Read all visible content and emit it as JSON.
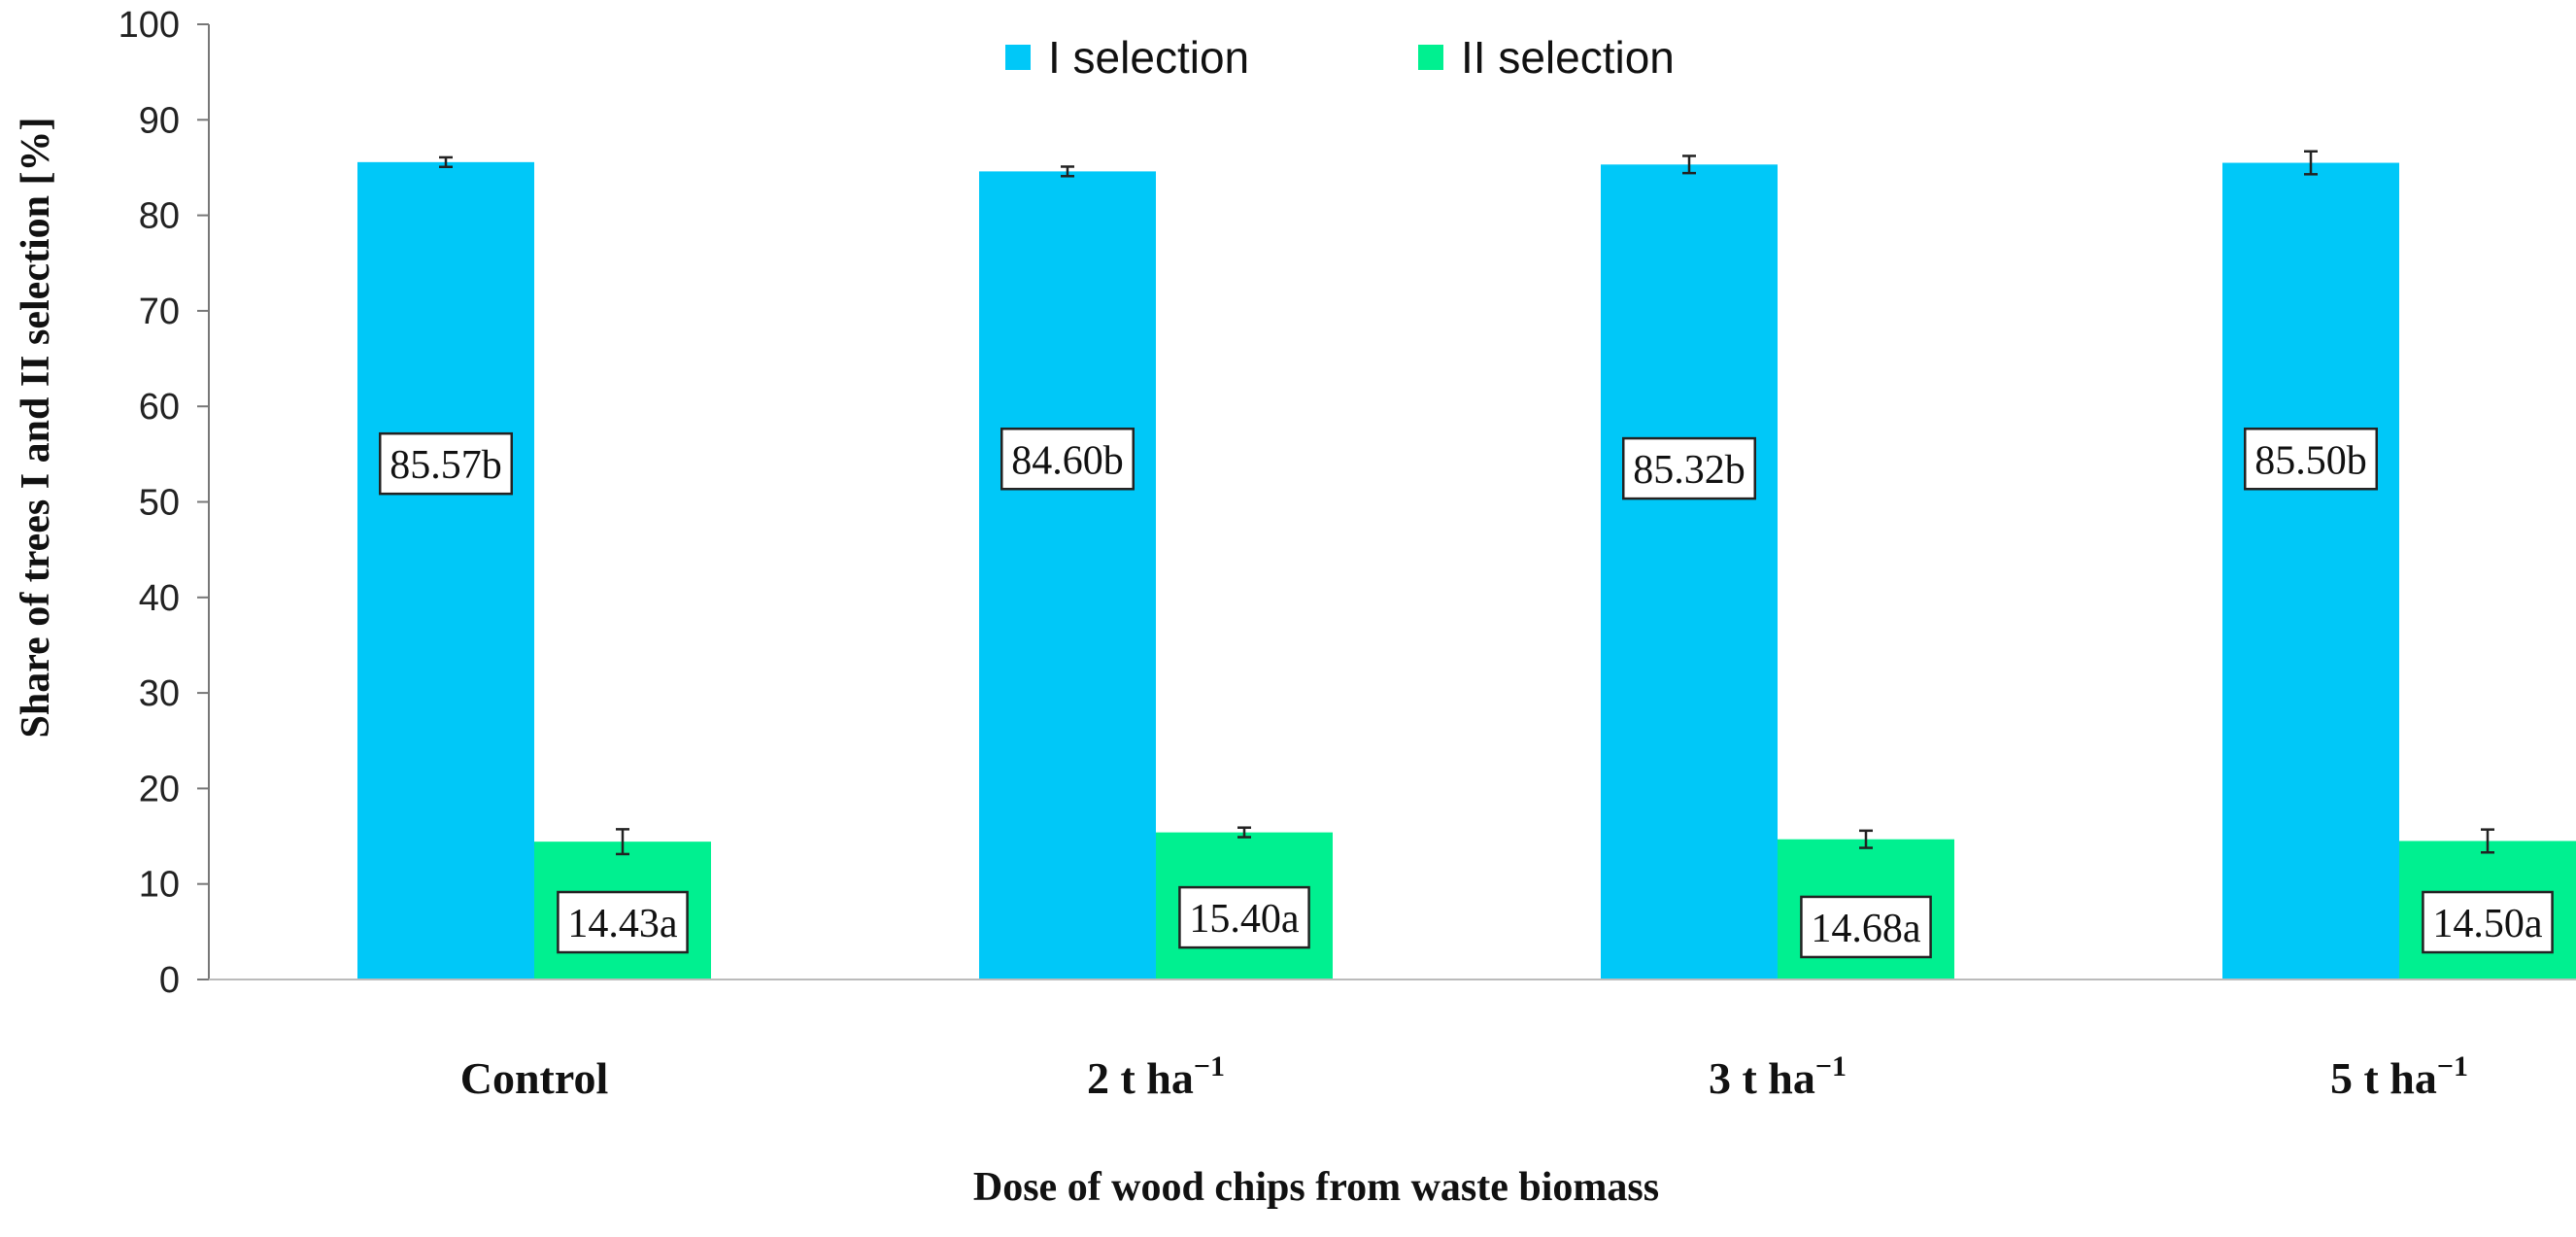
{
  "chart_data": {
    "type": "bar",
    "categories": [
      "Control",
      "2 t ha",
      "3 t ha",
      "5 t ha"
    ],
    "category_superscripts": [
      "",
      "−1",
      "−1",
      "−1"
    ],
    "series": [
      {
        "name": "I selection",
        "color": "#00C8F8",
        "values": [
          85.57,
          84.6,
          85.32,
          85.5
        ],
        "errors": [
          0.5,
          0.5,
          0.9,
          1.2
        ],
        "labels": [
          "85.57b",
          "84.60b",
          "85.32b",
          "85.50b"
        ],
        "label_at": [
          54,
          54.5,
          53.5,
          54.5
        ]
      },
      {
        "name": "II selection",
        "color": "#00F090",
        "values": [
          14.43,
          15.4,
          14.68,
          14.5
        ],
        "errors": [
          1.3,
          0.5,
          0.9,
          1.2
        ],
        "labels": [
          "14.43a",
          "15.40a",
          "14.68a",
          "14.50a"
        ],
        "label_at": [
          6,
          6.5,
          5.5,
          6
        ]
      }
    ],
    "xlabel": "Dose of wood chips from waste biomass",
    "ylabel": "Share of trees I and II selection [%]",
    "ylim": [
      0,
      100
    ],
    "yticks": [
      0,
      10,
      20,
      30,
      40,
      50,
      60,
      70,
      80,
      90,
      100
    ],
    "grid": false,
    "legend_position": "top-center"
  }
}
